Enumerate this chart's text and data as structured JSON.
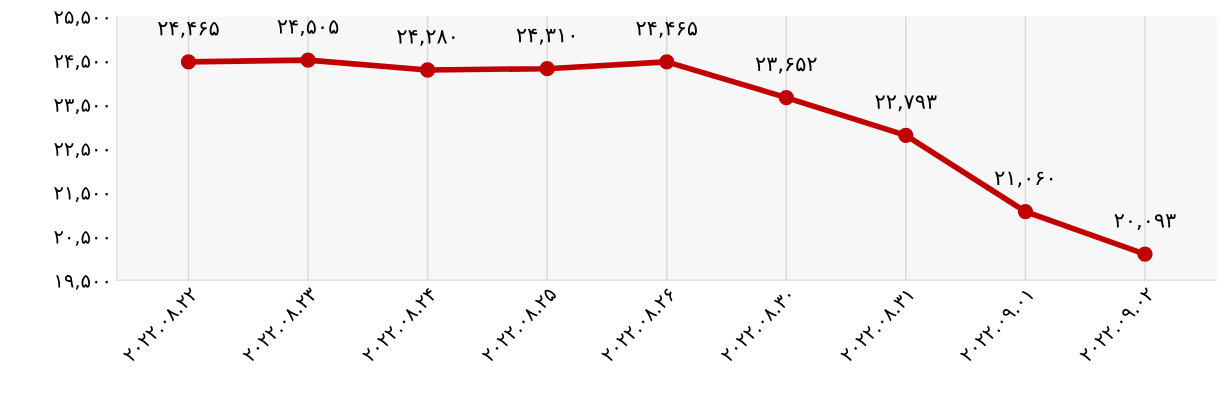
{
  "chart_data": {
    "type": "line",
    "categories": [
      "۲۰۲۲.۰۸.۲۲",
      "۲۰۲۲.۰۸.۲۳",
      "۲۰۲۲.۰۸.۲۴",
      "۲۰۲۲.۰۸.۲۵",
      "۲۰۲۲.۰۸.۲۶",
      "۲۰۲۲.۰۸.۳۰",
      "۲۰۲۲.۰۸.۳۱",
      "۲۰۲۲.۰۹.۰۱",
      "۲۰۲۲.۰۹.۰۲"
    ],
    "series": [
      {
        "color": "#c00000",
        "values": [
          24465,
          24505,
          24280,
          24310,
          24465,
          23652,
          22793,
          21060,
          20093
        ],
        "value_labels": [
          "۲۴,۴۶۵",
          "۲۴,۵۰۵",
          "۲۴,۲۸۰",
          "۲۴,۳۱۰",
          "۲۴,۴۶۵",
          "۲۳,۶۵۲",
          "۲۲,۷۹۳",
          "۲۱,۰۶۰",
          "۲۰,۰۹۳"
        ]
      }
    ],
    "ylim": [
      19500,
      25500
    ],
    "yticks": [
      {
        "value": 19500,
        "label": "۱۹,۵۰۰"
      },
      {
        "value": 20500,
        "label": "۲۰,۵۰۰"
      },
      {
        "value": 21500,
        "label": "۲۱,۵۰۰"
      },
      {
        "value": 22500,
        "label": "۲۲,۵۰۰"
      },
      {
        "value": 23500,
        "label": "۲۳,۵۰۰"
      },
      {
        "value": 24500,
        "label": "۲۴,۵۰۰"
      },
      {
        "value": 25500,
        "label": "۲۵,۵۰۰"
      }
    ],
    "grid": "x",
    "marker": "circle",
    "line_style": "solid",
    "legend": false
  }
}
